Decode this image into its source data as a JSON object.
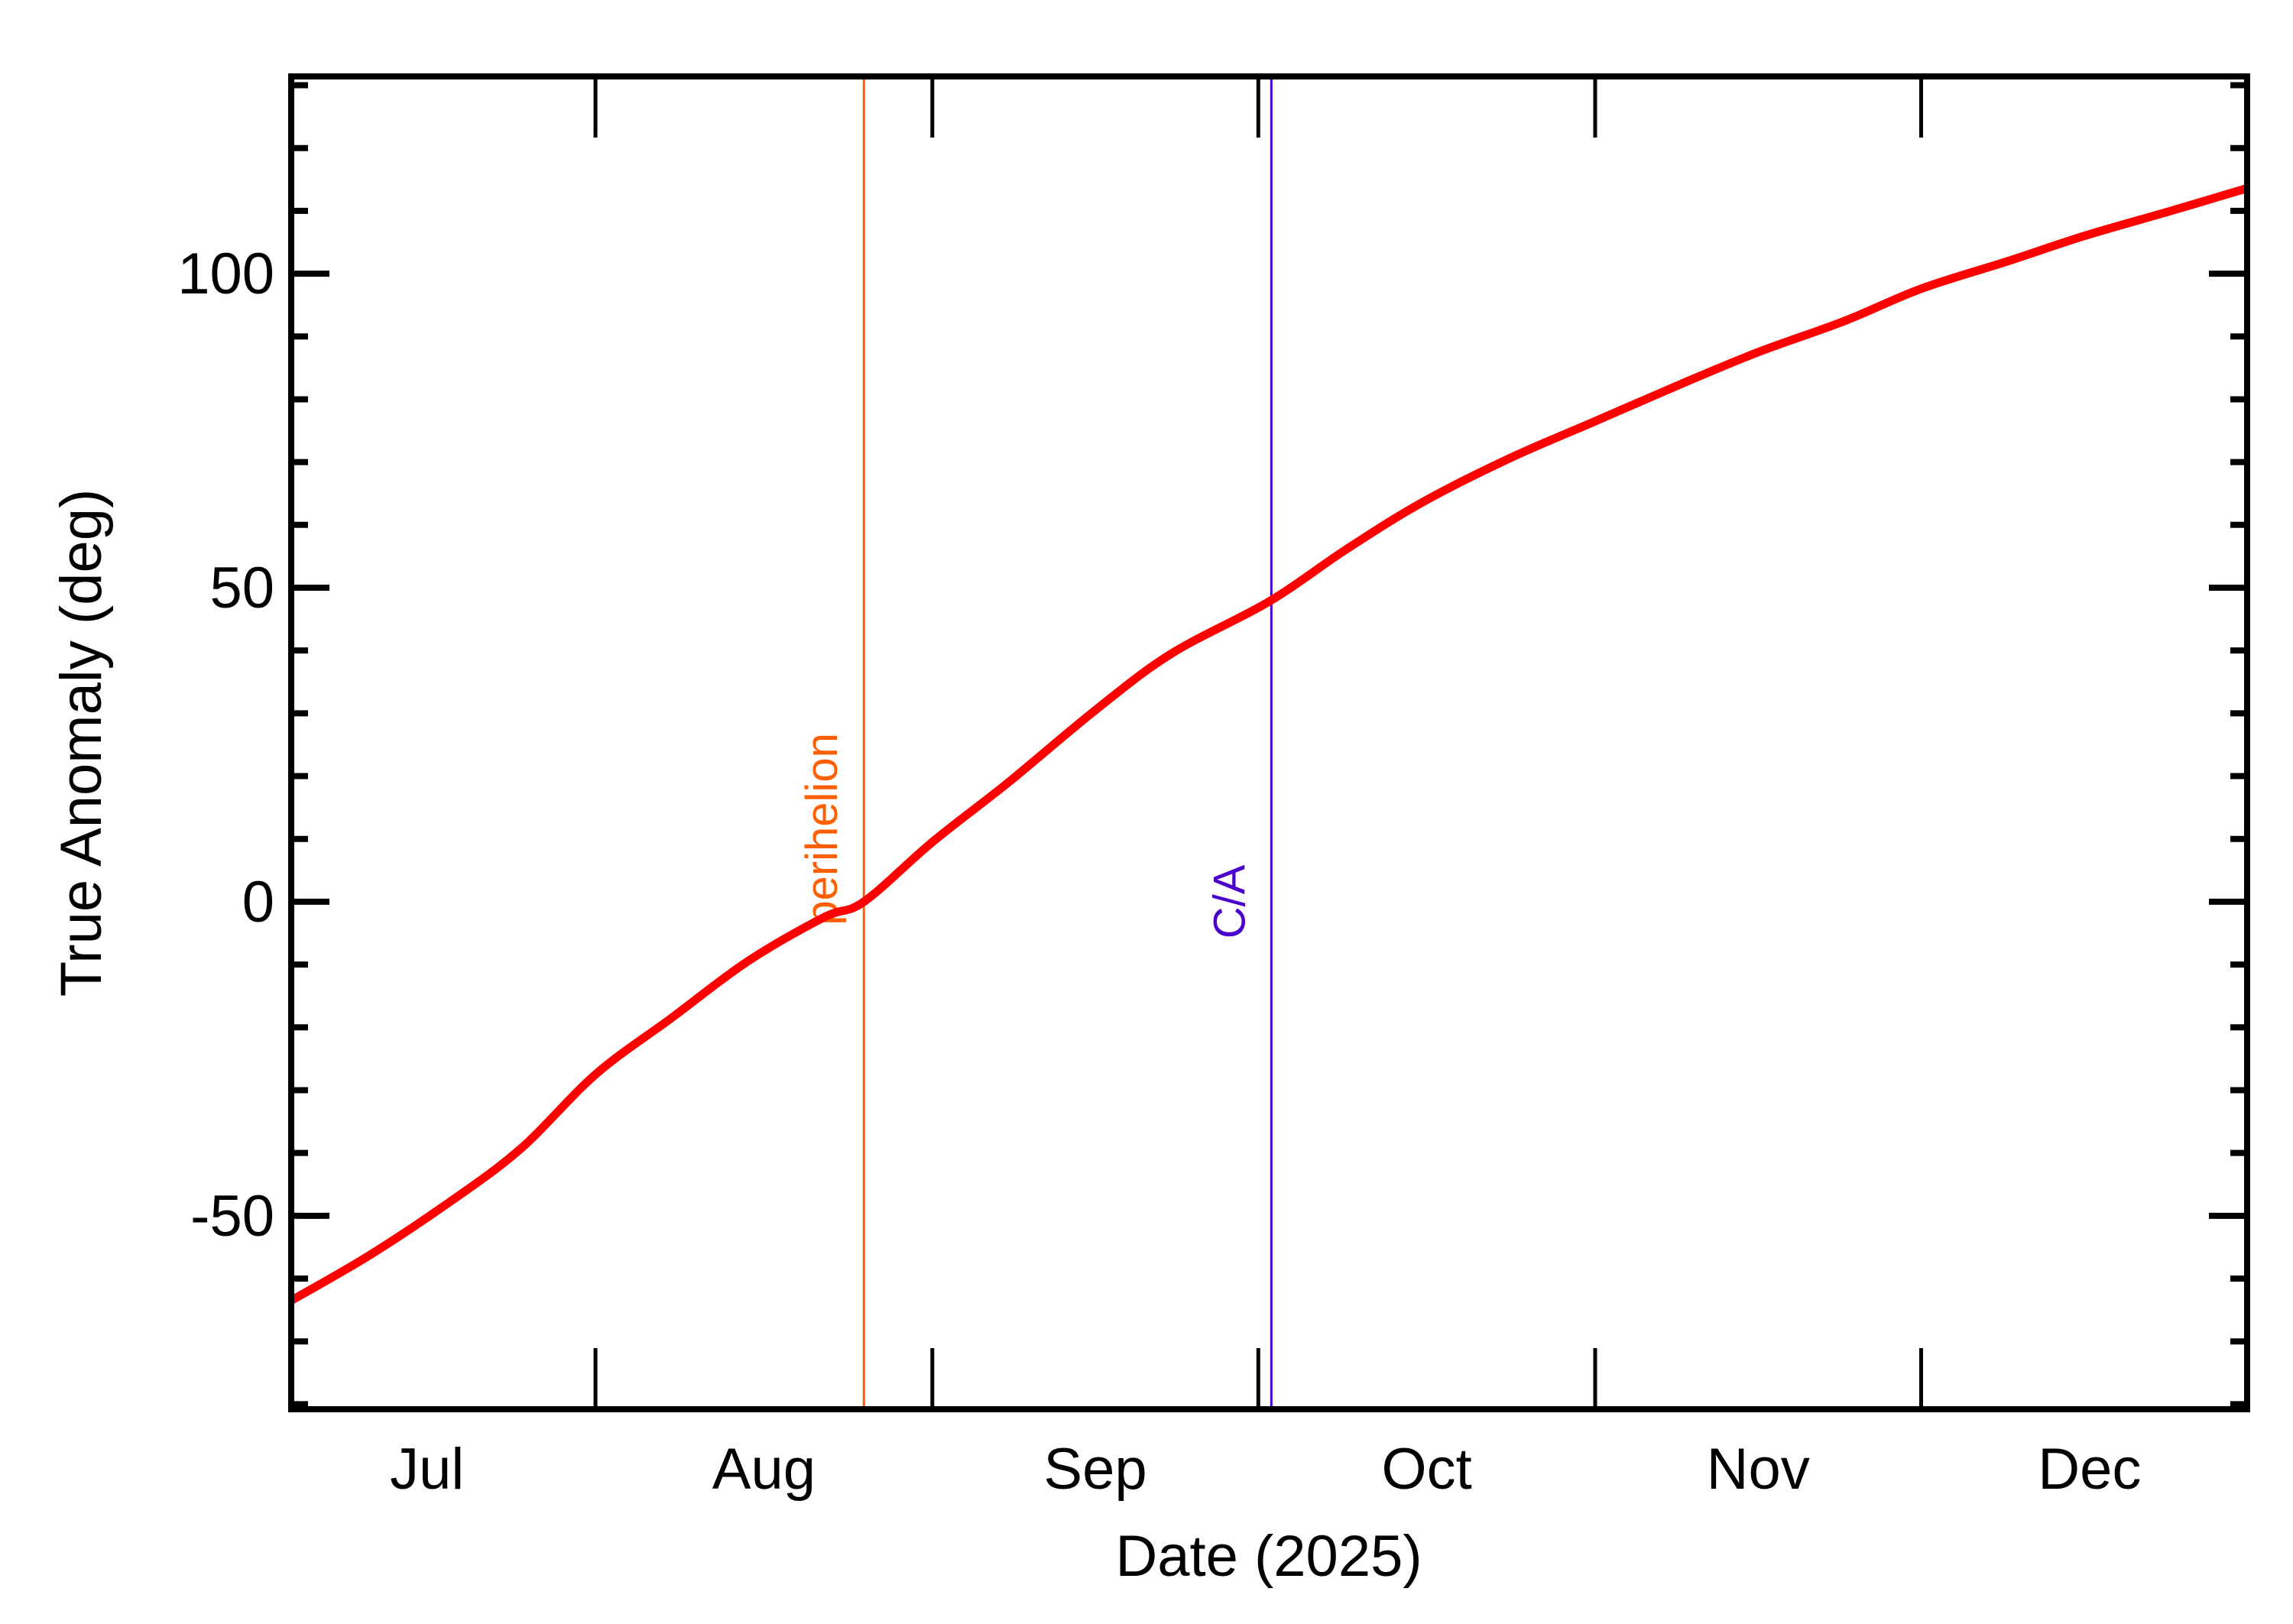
{
  "chart_data": {
    "type": "line",
    "title": "",
    "xlabel": "Date (2025)",
    "ylabel": "True Anomaly (deg)",
    "x_unit": "days since 2025-07-01",
    "xlim": [
      3,
      183
    ],
    "ylim": [
      -80.8,
      131.4
    ],
    "grid": false,
    "legend": null,
    "x_month_ticks": [
      {
        "label": "Aug 1",
        "day": 31
      },
      {
        "label": "Sep 1",
        "day": 62
      },
      {
        "label": "Oct 1",
        "day": 92
      },
      {
        "label": "Nov 1",
        "day": 123
      },
      {
        "label": "Dec 1",
        "day": 153
      }
    ],
    "x_tick_labels": [
      {
        "label": "Jul",
        "center_day": 15.5
      },
      {
        "label": "Aug",
        "center_day": 46.5
      },
      {
        "label": "Sep",
        "center_day": 77
      },
      {
        "label": "Oct",
        "center_day": 107.5
      },
      {
        "label": "Nov",
        "center_day": 138
      },
      {
        "label": "Dec",
        "center_day": 168.5
      }
    ],
    "y_major_ticks": [
      -50,
      0,
      50,
      100
    ],
    "y_minor_step": 10,
    "series": [
      {
        "name": "True Anomaly",
        "color": "#ff0000",
        "x": [
          3,
          10,
          17,
          24,
          31,
          38,
          45,
          52,
          55.7,
          62,
          69,
          77,
          84,
          93,
          100,
          107,
          115,
          123,
          131,
          138,
          146,
          153,
          161,
          168,
          176,
          183
        ],
        "y": [
          -63.5,
          -56.5,
          -48.5,
          -39.5,
          -27.5,
          -18.5,
          -9.5,
          -2.5,
          0,
          9.5,
          19,
          30.5,
          39.5,
          47.8,
          56,
          63.5,
          70.5,
          76.5,
          82.5,
          87.5,
          92.5,
          97.6,
          102,
          106,
          110,
          113.6
        ]
      }
    ],
    "markers": [
      {
        "label": "perihelion",
        "day": 55.7,
        "color": "#ff5f00",
        "label_y": 0
      },
      {
        "label": "C/A",
        "day": 93.2,
        "color": "#4a00cc",
        "label_y": 0
      }
    ]
  },
  "axes": {
    "x_title": "Date (2025)",
    "y_title": "True Anomaly (deg)",
    "y_labels": [
      "-50",
      "0",
      "50",
      "100"
    ],
    "x_labels": [
      "Jul",
      "Aug",
      "Sep",
      "Oct",
      "Nov",
      "Dec"
    ]
  },
  "annotations": {
    "perihelion": "perihelion",
    "closest_approach": "C/A"
  }
}
